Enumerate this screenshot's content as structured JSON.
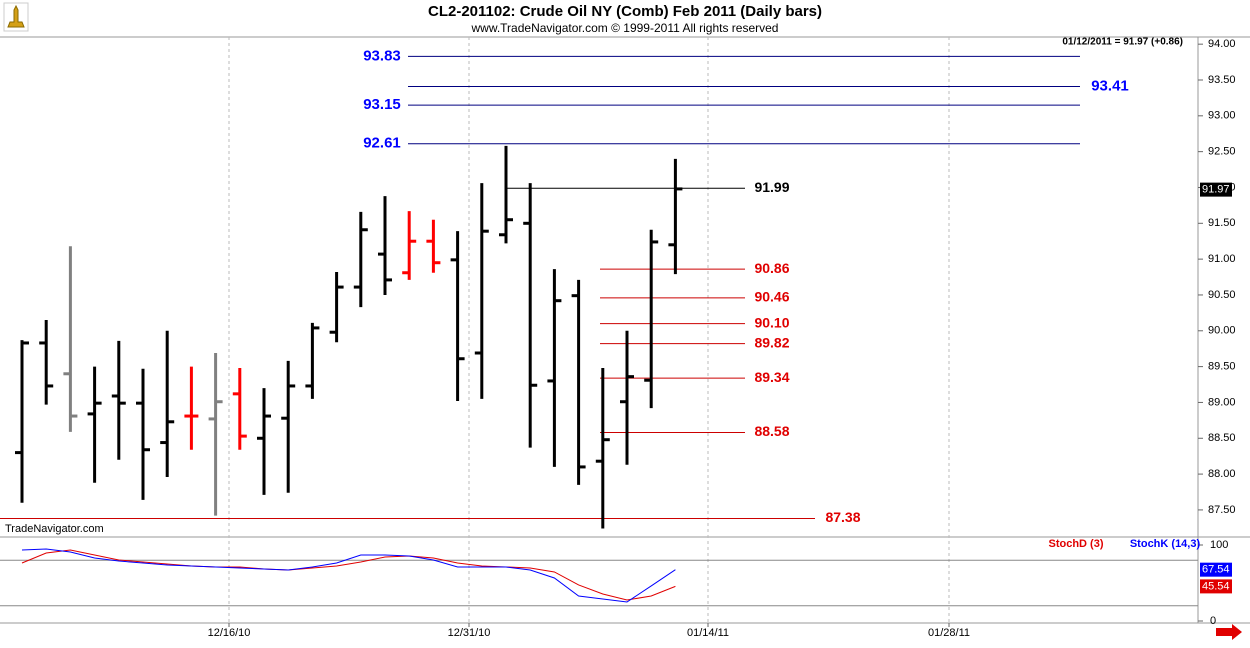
{
  "chart_data": [
    {
      "type": "ohlc",
      "title": "CL2-201102:  Crude Oil NY (Comb) Feb 2011  (Daily bars)",
      "subtitle": "www.TradeNavigator.com © 1999-2011 All rights reserved",
      "status": "01/12/2011 = 91.97 (+0.86)",
      "watermark": "TradeNavigator.com",
      "open": [
        88.3,
        89.83,
        89.4,
        88.84,
        89.09,
        88.99,
        88.44,
        88.81,
        88.77,
        89.12,
        88.5,
        88.78,
        89.23,
        89.98,
        90.61,
        91.07,
        90.81,
        91.25,
        90.99,
        89.69,
        91.34,
        91.5,
        89.3,
        90.49,
        88.18,
        89.01,
        89.31,
        91.2
      ],
      "high": [
        89.87,
        90.15,
        91.18,
        89.5,
        89.86,
        89.47,
        90.0,
        89.5,
        89.69,
        89.48,
        89.2,
        89.58,
        90.11,
        90.82,
        91.66,
        91.88,
        91.67,
        91.55,
        91.39,
        92.06,
        92.58,
        92.06,
        90.86,
        90.71,
        89.48,
        90.0,
        91.41,
        92.4
      ],
      "low": [
        87.6,
        88.97,
        88.59,
        87.88,
        88.2,
        87.64,
        87.96,
        88.34,
        87.42,
        88.34,
        87.71,
        87.74,
        89.05,
        89.84,
        90.33,
        90.5,
        90.71,
        90.81,
        89.02,
        89.05,
        91.22,
        88.37,
        88.1,
        87.85,
        87.24,
        88.13,
        88.92,
        90.79
      ],
      "close": [
        89.83,
        89.23,
        88.81,
        88.99,
        88.99,
        88.34,
        88.73,
        88.81,
        89.01,
        88.53,
        88.81,
        89.23,
        90.04,
        90.61,
        91.41,
        90.71,
        91.25,
        90.95,
        89.61,
        91.39,
        91.55,
        89.24,
        90.42,
        88.1,
        88.48,
        89.36,
        91.24,
        91.98
      ],
      "colors": [
        "#000000",
        "#000000",
        "#808080",
        "#000000",
        "#000000",
        "#000000",
        "#000000",
        "#ff0000",
        "#808080",
        "#ff0000",
        "#000000",
        "#000000",
        "#000000",
        "#000000",
        "#000000",
        "#000000",
        "#ff0000",
        "#ff0000",
        "#000000",
        "#000000",
        "#000000",
        "#000000",
        "#000000",
        "#000000",
        "#000000",
        "#000000",
        "#000000",
        "#000000"
      ],
      "levels": {
        "values": [
          93.83,
          93.41,
          93.15,
          92.61,
          91.99,
          90.86,
          90.46,
          90.1,
          89.82,
          89.34,
          88.58,
          87.38
        ],
        "value_labels": [
          "93.83",
          "93.41",
          "93.15",
          "92.61",
          "91.99",
          "90.86",
          "90.46",
          "90.10",
          "89.82",
          "89.34",
          "88.58",
          "87.38"
        ],
        "colors": [
          "#0000ff",
          "#0000ff",
          "#0000ff",
          "#0000ff",
          "#000000",
          "#e00000",
          "#e00000",
          "#e00000",
          "#e00000",
          "#e00000",
          "#e00000",
          "#e00000"
        ]
      },
      "last_value": {
        "value": 91.97,
        "label": "91.97"
      },
      "ylim": [
        87.15,
        94.1
      ],
      "yticks": [
        {
          "value": 94,
          "label": "94.00"
        },
        {
          "value": 93.5,
          "label": "93.50"
        },
        {
          "value": 93,
          "label": "93.00"
        },
        {
          "value": 92.5,
          "label": "92.50"
        },
        {
          "value": 92,
          "label": "92.00"
        },
        {
          "value": 91.5,
          "label": "91.50"
        },
        {
          "value": 91,
          "label": "91.00"
        },
        {
          "value": 90.5,
          "label": "90.50"
        },
        {
          "value": 90,
          "label": "90.00"
        },
        {
          "value": 89.5,
          "label": "89.50"
        },
        {
          "value": 89,
          "label": "89.00"
        },
        {
          "value": 88.5,
          "label": "88.50"
        },
        {
          "value": 88,
          "label": "88.00"
        },
        {
          "value": 87.5,
          "label": "87.50"
        }
      ],
      "date_labels": [
        "12/16/10",
        "12/31/10",
        "01/14/11",
        "01/28/11"
      ]
    },
    {
      "type": "line",
      "series": [
        {
          "name": "StochD (3)",
          "color": "#e00000",
          "values": [
            76.3,
            89.5,
            93.4,
            86.8,
            80.3,
            77.6,
            75.0,
            72.4,
            71.1,
            71.1,
            68.4,
            67.1,
            69.7,
            72.4,
            77.6,
            84.2,
            85.5,
            82.9,
            76.3,
            72.4,
            71.1,
            69.7,
            64.5,
            47.4,
            35.5,
            27.6,
            32.9,
            45.54
          ],
          "last_label": "45.54"
        },
        {
          "name": "StochK (14,3)",
          "color": "#0000ff",
          "values": [
            93.4,
            94.7,
            90.8,
            82.9,
            78.9,
            76.3,
            73.7,
            72.4,
            71.1,
            69.7,
            68.4,
            67.1,
            71.1,
            76.3,
            86.8,
            86.8,
            85.5,
            80.3,
            71.1,
            71.1,
            71.1,
            67.1,
            56.6,
            32.9,
            28.9,
            25.0,
            46.1,
            67.54
          ],
          "last_label": "67.54"
        }
      ],
      "reference_lines": [
        80,
        20
      ],
      "ylim": [
        0,
        100
      ],
      "yticks": [
        100,
        0
      ]
    }
  ]
}
